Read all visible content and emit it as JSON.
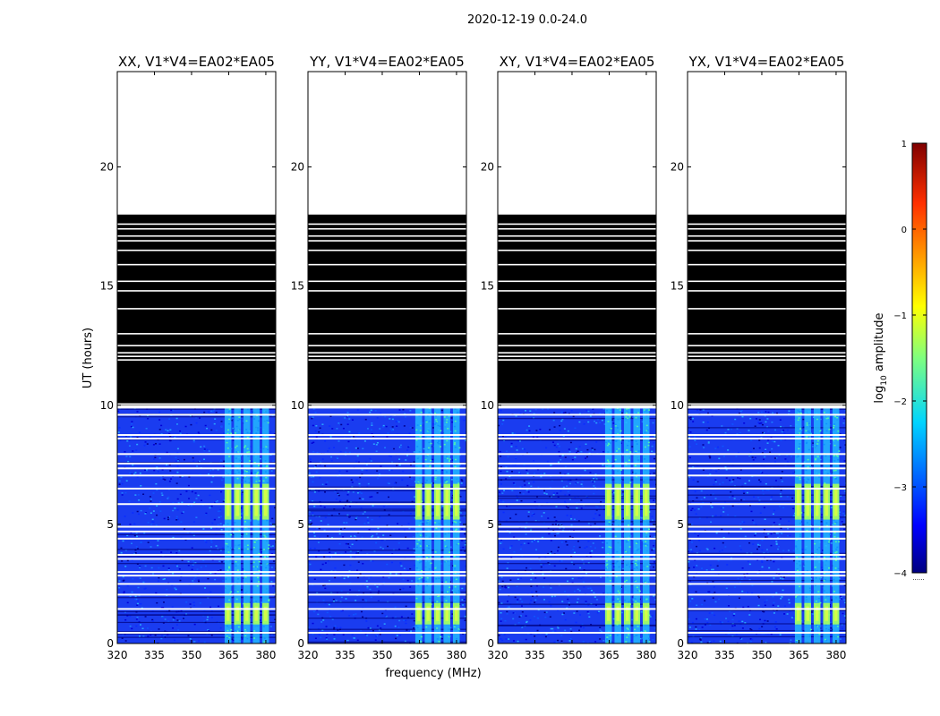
{
  "chart_data": {
    "type": "heatmap",
    "suptitle": "2020-12-19 0.0-24.0",
    "xlabel": "frequency (MHz)",
    "ylabel": "UT (hours)",
    "xlim": [
      320,
      384
    ],
    "ylim": [
      0,
      24
    ],
    "xticks": [
      320,
      335,
      350,
      365,
      380
    ],
    "yticks": [
      0,
      5,
      10,
      15,
      20
    ],
    "panels": [
      {
        "title": "XX, V1*V4=EA02*EA05"
      },
      {
        "title": "YY, V1*V4=EA02*EA05"
      },
      {
        "title": "XY, V1*V4=EA02*EA05"
      },
      {
        "title": "YX, V1*V4=EA02*EA05"
      }
    ],
    "data_extent_hours": [
      0,
      9.9
    ],
    "flagged_extent_hours": [
      10.0,
      18.0
    ],
    "empty_extent_hours": [
      18.0,
      24.0
    ],
    "signal_band_mhz": [
      363,
      382
    ],
    "bright_segments_hours": [
      [
        0.8,
        1.7
      ],
      [
        5.2,
        6.7
      ]
    ],
    "gap_lines_hours": [
      0.45,
      1.45,
      2.05,
      2.5,
      2.85,
      3.0,
      3.55,
      3.72,
      4.4,
      4.7,
      4.9,
      5.85,
      6.5,
      7.05,
      7.35,
      7.55,
      7.95,
      8.6,
      8.75,
      9.6,
      9.9
    ],
    "flag_white_lines_hours": [
      10.05,
      11.9,
      12.05,
      12.2,
      12.5,
      13.0,
      14.05,
      14.8,
      15.2,
      15.9,
      16.5,
      16.9,
      17.1,
      17.4,
      17.6
    ],
    "colorbar": {
      "label_prefix": "log",
      "label_sub": "10",
      "label_suffix": " amplitude",
      "min": -4,
      "max": 1,
      "ticks": [
        "1",
        "0",
        "−1",
        "−2",
        "−3",
        "−4"
      ],
      "colormap": "jet",
      "footnote": "......"
    }
  }
}
